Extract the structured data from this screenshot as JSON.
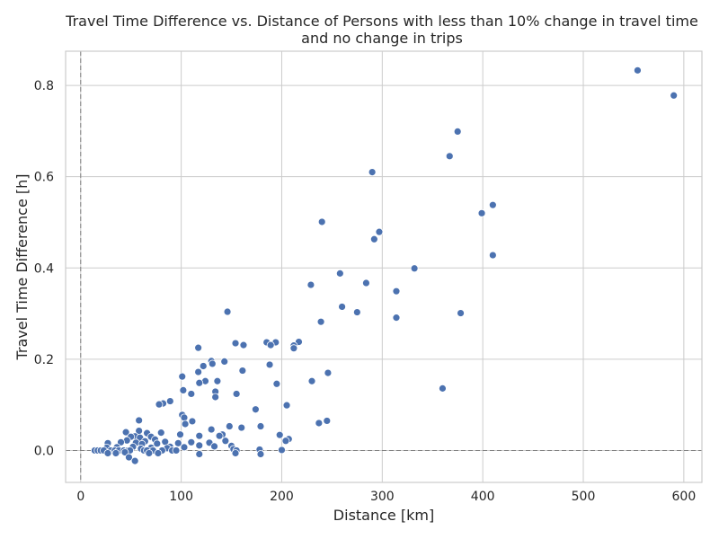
{
  "chart_data": {
    "type": "scatter",
    "title_lines": [
      "Travel Time Difference vs. Distance of Persons with less than 10% change in travel time",
      "and no change in trips"
    ],
    "xlabel": "Distance [km]",
    "ylabel": "Travel Time Difference [h]",
    "xlim": [
      -15,
      618
    ],
    "ylim": [
      -0.07,
      0.875
    ],
    "x_ticks": [
      0,
      100,
      200,
      300,
      400,
      500,
      600
    ],
    "y_ticks": [
      0.0,
      0.2,
      0.4,
      0.6,
      0.8
    ],
    "x_tick_labels": [
      "0",
      "100",
      "200",
      "300",
      "400",
      "500",
      "600"
    ],
    "y_tick_labels": [
      "0.0",
      "0.2",
      "0.4",
      "0.6",
      "0.8"
    ],
    "reference_lines": {
      "vertical_x": 0,
      "horizontal_y": 0
    },
    "grid": true,
    "point_color": "#4c72b0",
    "points": [
      [
        554,
        0.833
      ],
      [
        590,
        0.778
      ],
      [
        375,
        0.699
      ],
      [
        367,
        0.645
      ],
      [
        290,
        0.61
      ],
      [
        410,
        0.538
      ],
      [
        399,
        0.52
      ],
      [
        240,
        0.501
      ],
      [
        297,
        0.479
      ],
      [
        292,
        0.463
      ],
      [
        410,
        0.428
      ],
      [
        332,
        0.399
      ],
      [
        258,
        0.388
      ],
      [
        284,
        0.367
      ],
      [
        229,
        0.363
      ],
      [
        314,
        0.349
      ],
      [
        260,
        0.315
      ],
      [
        275,
        0.303
      ],
      [
        378,
        0.301
      ],
      [
        146,
        0.304
      ],
      [
        314,
        0.291
      ],
      [
        239,
        0.282
      ],
      [
        217,
        0.238
      ],
      [
        194,
        0.237
      ],
      [
        185,
        0.237
      ],
      [
        154,
        0.235
      ],
      [
        162,
        0.231
      ],
      [
        189,
        0.231
      ],
      [
        212,
        0.23
      ],
      [
        212,
        0.224
      ],
      [
        117,
        0.225
      ],
      [
        130,
        0.196
      ],
      [
        143,
        0.195
      ],
      [
        131,
        0.19
      ],
      [
        188,
        0.188
      ],
      [
        122,
        0.185
      ],
      [
        161,
        0.175
      ],
      [
        117,
        0.172
      ],
      [
        246,
        0.17
      ],
      [
        101,
        0.162
      ],
      [
        124,
        0.152
      ],
      [
        136,
        0.152
      ],
      [
        230,
        0.152
      ],
      [
        118,
        0.148
      ],
      [
        195,
        0.146
      ],
      [
        360,
        0.136
      ],
      [
        102,
        0.132
      ],
      [
        134,
        0.129
      ],
      [
        110,
        0.124
      ],
      [
        155,
        0.124
      ],
      [
        134,
        0.117
      ],
      [
        89,
        0.108
      ],
      [
        82,
        0.103
      ],
      [
        78,
        0.101
      ],
      [
        205,
        0.099
      ],
      [
        174,
        0.09
      ],
      [
        101,
        0.078
      ],
      [
        103,
        0.072
      ],
      [
        58,
        0.066
      ],
      [
        111,
        0.064
      ],
      [
        245,
        0.065
      ],
      [
        237,
        0.06
      ],
      [
        104,
        0.058
      ],
      [
        148,
        0.053
      ],
      [
        160,
        0.05
      ],
      [
        179,
        0.053
      ],
      [
        130,
        0.046
      ],
      [
        58,
        0.043
      ],
      [
        45,
        0.04
      ],
      [
        80,
        0.039
      ],
      [
        66,
        0.038
      ],
      [
        99,
        0.035
      ],
      [
        141,
        0.035
      ],
      [
        198,
        0.034
      ],
      [
        207,
        0.025
      ],
      [
        138,
        0.032
      ],
      [
        54,
        0.031
      ],
      [
        50,
        0.03
      ],
      [
        118,
        0.032
      ],
      [
        70,
        0.03
      ],
      [
        59,
        0.028
      ],
      [
        74,
        0.024
      ],
      [
        46,
        0.022
      ],
      [
        64,
        0.02
      ],
      [
        144,
        0.021
      ],
      [
        84,
        0.019
      ],
      [
        110,
        0.018
      ],
      [
        128,
        0.017
      ],
      [
        204,
        0.021
      ],
      [
        40,
        0.018
      ],
      [
        55,
        0.017
      ],
      [
        97,
        0.016
      ],
      [
        27,
        0.016
      ],
      [
        76,
        0.015
      ],
      [
        61,
        0.014
      ],
      [
        118,
        0.011
      ],
      [
        150,
        0.01
      ],
      [
        89,
        0.008
      ],
      [
        133,
        0.009
      ],
      [
        52,
        0.008
      ],
      [
        36,
        0.007
      ],
      [
        70,
        0.006
      ],
      [
        103,
        0.007
      ],
      [
        26,
        0.006
      ],
      [
        86,
        0.005
      ],
      [
        60,
        0.004
      ],
      [
        152,
        0.003
      ],
      [
        178,
        0.002
      ],
      [
        200,
        0.001
      ],
      [
        14,
        0.0
      ],
      [
        17,
        0.0
      ],
      [
        20,
        0.0
      ],
      [
        23,
        0.0
      ],
      [
        30,
        0.0
      ],
      [
        34,
        0.0
      ],
      [
        38,
        0.0
      ],
      [
        43,
        0.0
      ],
      [
        47,
        0.0
      ],
      [
        49,
        0.0
      ],
      [
        63,
        0.0
      ],
      [
        66,
        0.0
      ],
      [
        72,
        0.0
      ],
      [
        81,
        0.0
      ],
      [
        91,
        0.0
      ],
      [
        95,
        0.0
      ],
      [
        155,
        0.0
      ],
      [
        27,
        -0.006
      ],
      [
        35,
        -0.006
      ],
      [
        44,
        -0.004
      ],
      [
        68,
        -0.006
      ],
      [
        77,
        -0.006
      ],
      [
        118,
        -0.008
      ],
      [
        154,
        -0.006
      ],
      [
        179,
        -0.008
      ],
      [
        48,
        -0.015
      ],
      [
        54,
        -0.023
      ]
    ]
  }
}
